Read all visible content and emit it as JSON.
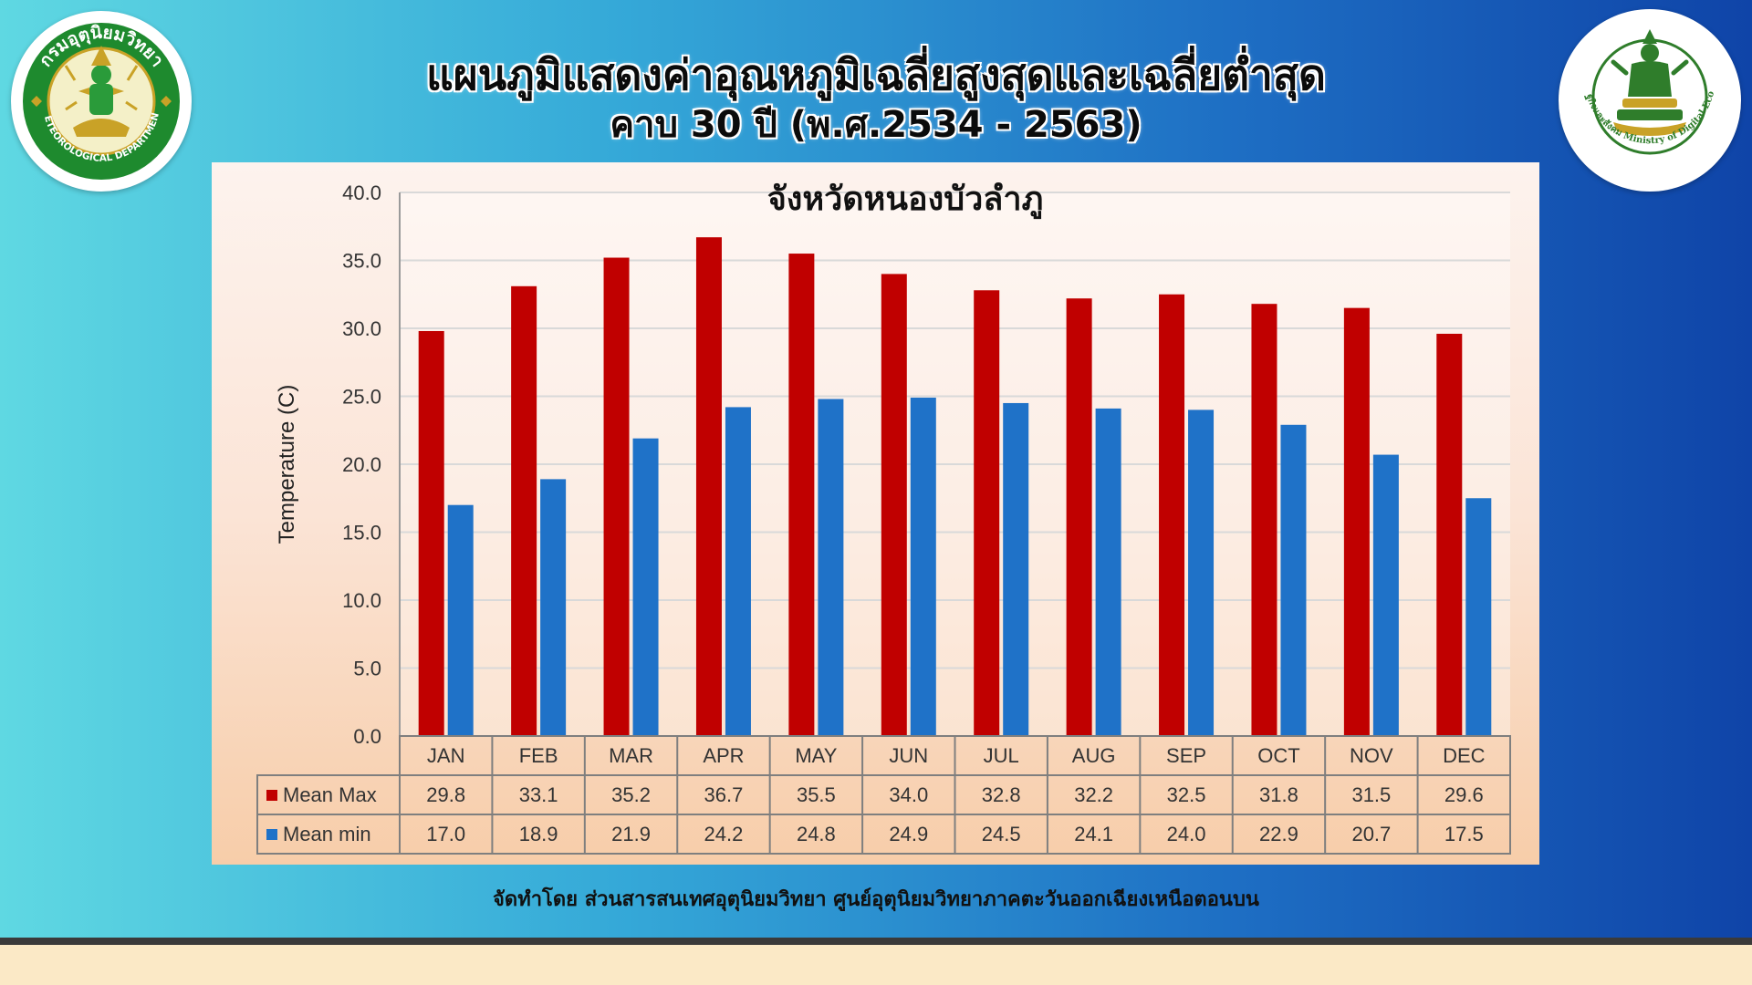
{
  "header": {
    "title_line1": "แผนภูมิแสดงค่าอุณหภูมิเฉลี่ยสูงสุดและเฉลี่ยต่ำสุด",
    "title_line2": "คาบ 30 ปี (พ.ศ.2534 - 2563)"
  },
  "logos": {
    "left": {
      "ring_text_top": "กรมอุตุนิยมวิทยา",
      "ring_text_bottom": "METEOROLOGICAL DEPARTMENT",
      "ring_color": "#1e8a2e"
    },
    "right": {
      "ring_text": "กระทรวงดิจิทัลเพื่อเศรษฐกิจและสังคม Ministry of Digital Economy and Society",
      "emblem_color": "#2f7d2b"
    }
  },
  "footer": {
    "credit": "จัดทำโดย ส่วนสารสนเทศอุตุนิยมวิทยา ศูนย์อุตุนิยมวิทยาภาคตะวันออกเฉียงเหนือตอนบน"
  },
  "colors": {
    "max": "#c00000",
    "min": "#1f72c8",
    "grid": "#d9d9d9",
    "table_border": "#7f7f7f"
  },
  "chart_data": {
    "type": "bar",
    "title": "จังหวัดหนองบัวลำภู",
    "ylabel": "Temperature (C)",
    "xlabel": "",
    "ylim": [
      0,
      40
    ],
    "yticks": [
      "0.0",
      "5.0",
      "10.0",
      "15.0",
      "20.0",
      "25.0",
      "30.0",
      "35.0",
      "40.0"
    ],
    "grid": true,
    "legend_position": "data-table",
    "categories": [
      "JAN",
      "FEB",
      "MAR",
      "APR",
      "MAY",
      "JUN",
      "JUL",
      "AUG",
      "SEP",
      "OCT",
      "NOV",
      "DEC"
    ],
    "series": [
      {
        "name": "Mean Max",
        "values": [
          29.8,
          33.1,
          35.2,
          36.7,
          35.5,
          34.0,
          32.8,
          32.2,
          32.5,
          31.8,
          31.5,
          29.6
        ]
      },
      {
        "name": "Mean min",
        "values": [
          17.0,
          18.9,
          21.9,
          24.2,
          24.8,
          24.9,
          24.5,
          24.1,
          24.0,
          22.9,
          20.7,
          17.5
        ]
      }
    ]
  }
}
